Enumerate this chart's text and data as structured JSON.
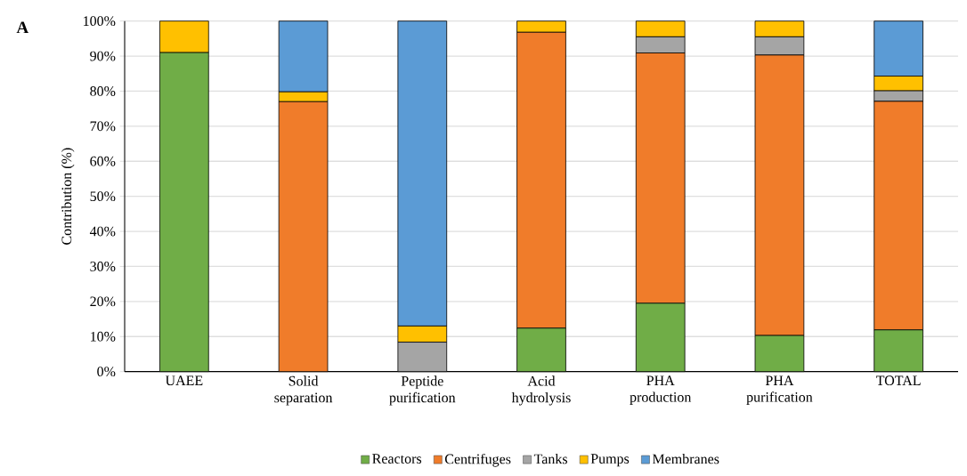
{
  "chart_data": {
    "type": "bar",
    "stacked": true,
    "ylabel": "Contribution (%)",
    "categories": [
      "UAEE",
      "Solid separation",
      "Peptide purification",
      "Acid hydrolysis",
      "PHA production",
      "PHA purification",
      "TOTAL"
    ],
    "series": [
      {
        "name": "Reactors",
        "color": "#70ad47",
        "values": [
          91,
          null,
          null,
          12.4,
          19.5,
          10.3,
          11.9
        ]
      },
      {
        "name": "Centrifuges",
        "color": "#f07c2a",
        "values": [
          null,
          77,
          null,
          84.4,
          71.4,
          80,
          65.2
        ]
      },
      {
        "name": "Tanks",
        "color": "#a5a5a5",
        "values": [
          null,
          null,
          8.4,
          null,
          4.6,
          5.2,
          3.0
        ]
      },
      {
        "name": "Pumps",
        "color": "#ffc000",
        "values": [
          9,
          2.8,
          4.6,
          3.2,
          4.5,
          4.5,
          4.2
        ]
      },
      {
        "name": "Membranes",
        "color": "#5b9bd5",
        "values": [
          null,
          20.2,
          87,
          null,
          null,
          null,
          15.7
        ]
      }
    ],
    "ylim": [
      0,
      100
    ],
    "yticks": [
      {
        "value": 0,
        "label": "0%"
      },
      {
        "value": 10,
        "label": "10%"
      },
      {
        "value": 20,
        "label": "20%"
      },
      {
        "value": 30,
        "label": "30%"
      },
      {
        "value": 40,
        "label": "40%"
      },
      {
        "value": 50,
        "label": "50%"
      },
      {
        "value": 60,
        "label": "60%"
      },
      {
        "value": 70,
        "label": "70%"
      },
      {
        "value": 80,
        "label": "80%"
      },
      {
        "value": 90,
        "label": "90%"
      },
      {
        "value": 100,
        "label": "100%"
      }
    ],
    "grid": "y",
    "legend": "bottom",
    "annotations": [
      "A"
    ]
  }
}
